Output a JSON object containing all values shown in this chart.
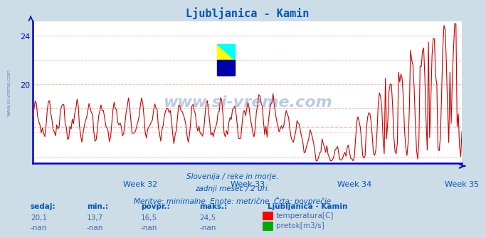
{
  "title": "Ljubljanica - Kamin",
  "background_color": "#ccdde8",
  "plot_background": "#ffffff",
  "line_color": "#cc0000",
  "avg_line_color": "#ffaaaa",
  "axis_color": "#0000cc",
  "text_color": "#0055bb",
  "grid_color": "#ffbbbb",
  "ylim": [
    13.5,
    25.2
  ],
  "yticks": [
    20,
    24
  ],
  "week_labels": [
    "Week 32",
    "Week 33",
    "Week 34",
    "Week 35"
  ],
  "subtitle_lines": [
    "Slovenija / reke in morje.",
    "zadnji mesec / 2 uri.",
    "Meritve: minimalne  Enote: metrične  Črta: povprečje"
  ],
  "footer_label1": "sedaj:",
  "footer_label2": "min.:",
  "footer_label3": "povpr.:",
  "footer_label4": "maks.:",
  "footer_val1": "20,1",
  "footer_val2": "13,7",
  "footer_val3": "16,5",
  "footer_val4": "24,5",
  "footer_station": "Ljubljanica - Kamin",
  "footer_temp_label": "temperatura[C]",
  "footer_pretok_label": "pretok[m3/s]",
  "n_points": 360,
  "avg_value": 16.5,
  "min_value": 13.7,
  "max_value": 24.5
}
